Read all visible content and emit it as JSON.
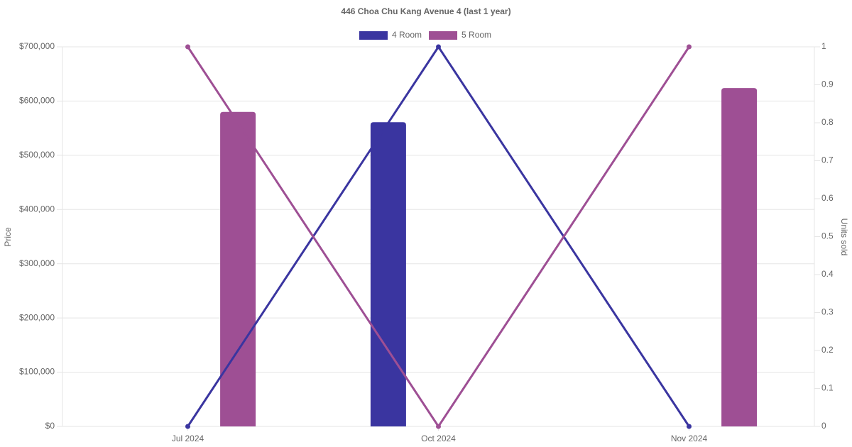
{
  "chart_data": {
    "type": "bar-line",
    "title": "446 Choa Chu Kang Avenue 4 (last 1 year)",
    "categories": [
      "Jul 2024",
      "Oct 2024",
      "Nov 2024"
    ],
    "series": [
      {
        "name": "4 Room",
        "color": "#3a35a0",
        "values": [
          null,
          561000,
          null
        ],
        "units": [
          0,
          1,
          0
        ]
      },
      {
        "name": "5 Room",
        "color": "#9e4f94",
        "values": [
          580000,
          null,
          624000
        ],
        "units": [
          1,
          0,
          1
        ]
      }
    ],
    "ylabel": "Price",
    "y2label": "Units sold",
    "ylim": [
      0,
      700000
    ],
    "yticks": [
      {
        "value": 0,
        "label": "$0"
      },
      {
        "value": 100000,
        "label": "$100,000"
      },
      {
        "value": 200000,
        "label": "$200,000"
      },
      {
        "value": 300000,
        "label": "$300,000"
      },
      {
        "value": 400000,
        "label": "$400,000"
      },
      {
        "value": 500000,
        "label": "$500,000"
      },
      {
        "value": 600000,
        "label": "$600,000"
      },
      {
        "value": 700000,
        "label": "$700,000"
      }
    ],
    "y2lim": [
      0,
      1
    ],
    "y2ticks": [
      0,
      0.1,
      0.2,
      0.3,
      0.4,
      0.5,
      0.6,
      0.7,
      0.8,
      0.9,
      1
    ],
    "grid": true
  }
}
